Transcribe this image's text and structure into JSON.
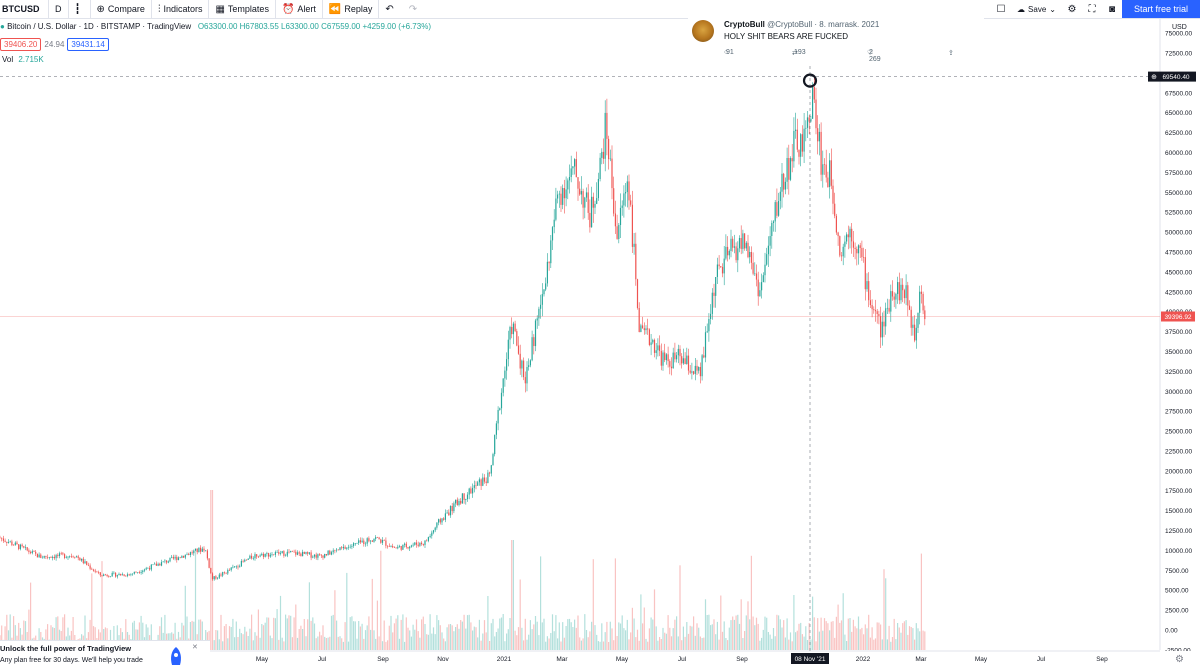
{
  "toolbar": {
    "symbol": "BTCUSD",
    "interval": "D",
    "compare": "Compare",
    "indicators": "Indicators",
    "templates": "Templates",
    "alert": "Alert",
    "replay": "Replay",
    "save": "Save",
    "trial": "Start free trial"
  },
  "legend": {
    "title": "Bitcoin / U.S. Dollar · 1D · BITSTAMP · TradingView",
    "open": "O63300.00",
    "high": "H67803.55",
    "low": "L63300.00",
    "close": "C67559.00",
    "change": "+4259.00 (+6.73%)",
    "bid": "39406.20",
    "spread": "24.94",
    "ask": "39431.14",
    "vol_label": "Vol",
    "vol_value": "2.715K"
  },
  "tweet": {
    "name": "CryptoBull",
    "handle": "@CryptoBull · 8. marrask. 2021",
    "text": "HOLY SHIT BEARS ARE FUCKED",
    "replies": "91",
    "retweets": "193",
    "likes": "2 269"
  },
  "chart_data": {
    "type": "candlestick",
    "currency": "USD",
    "y_ticks": [
      "75000.00",
      "72500.00",
      "67500.00",
      "65000.00",
      "62500.00",
      "60000.00",
      "57500.00",
      "55000.00",
      "52500.00",
      "50000.00",
      "47500.00",
      "45000.00",
      "42500.00",
      "40000.00",
      "37500.00",
      "35000.00",
      "32500.00",
      "30000.00",
      "27500.00",
      "25000.00",
      "22500.00",
      "20000.00",
      "17500.00",
      "15000.00",
      "12500.00",
      "10000.00",
      "7500.00",
      "5000.00",
      "2500.00",
      "0.00",
      "-2500.00"
    ],
    "x_ticks": [
      "May",
      "Jul",
      "Sep",
      "Nov",
      "2021",
      "Mar",
      "May",
      "Jul",
      "Sep",
      "08 Nov '21",
      "2022",
      "Mar",
      "May",
      "Jul",
      "Sep"
    ],
    "crosshair_price": "69540.40",
    "last_price": "39396.92",
    "crosshair_date": "08 Nov '21",
    "anchors": [
      [
        0,
        11600
      ],
      [
        40,
        9200
      ],
      [
        75,
        9400
      ],
      [
        100,
        6900
      ],
      [
        130,
        7000
      ],
      [
        170,
        8800
      ],
      [
        205,
        10300
      ],
      [
        212,
        6400
      ],
      [
        225,
        7200
      ],
      [
        255,
        9400
      ],
      [
        290,
        9700
      ],
      [
        320,
        9300
      ],
      [
        345,
        10300
      ],
      [
        375,
        11600
      ],
      [
        395,
        10300
      ],
      [
        425,
        11000
      ],
      [
        440,
        13700
      ],
      [
        460,
        16400
      ],
      [
        480,
        18500
      ],
      [
        490,
        19300
      ],
      [
        500,
        28900
      ],
      [
        512,
        38500
      ],
      [
        525,
        31500
      ],
      [
        545,
        43500
      ],
      [
        558,
        54800
      ],
      [
        575,
        57500
      ],
      [
        590,
        52000
      ],
      [
        600,
        58000
      ],
      [
        606,
        63500
      ],
      [
        617,
        49500
      ],
      [
        628,
        57300
      ],
      [
        640,
        37000
      ],
      [
        652,
        36500
      ],
      [
        665,
        33600
      ],
      [
        680,
        34200
      ],
      [
        700,
        31800
      ],
      [
        715,
        44000
      ],
      [
        730,
        47500
      ],
      [
        745,
        48800
      ],
      [
        760,
        42500
      ],
      [
        780,
        55300
      ],
      [
        795,
        61000
      ],
      [
        805,
        61000
      ],
      [
        812,
        67500
      ],
      [
        822,
        58500
      ],
      [
        832,
        56500
      ],
      [
        840,
        47500
      ],
      [
        850,
        50500
      ],
      [
        860,
        47500
      ],
      [
        870,
        41500
      ],
      [
        882,
        37500
      ],
      [
        892,
        43000
      ],
      [
        905,
        42500
      ],
      [
        915,
        37000
      ],
      [
        920,
        44000
      ],
      [
        925,
        39400
      ]
    ]
  },
  "promo": {
    "title": "Unlock the full power of TradingView",
    "text": "Any plan free for 30 days. We'll help you trade"
  }
}
